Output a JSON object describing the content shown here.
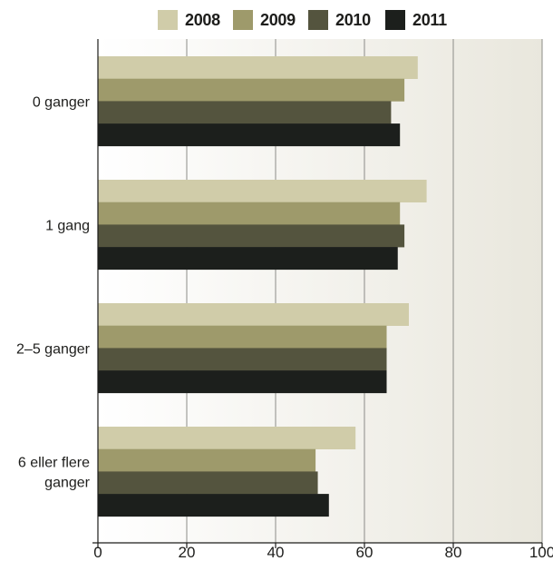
{
  "chart_data": {
    "type": "bar",
    "orientation": "horizontal",
    "categories": [
      "0 ganger",
      "1 gang",
      "2–5 ganger",
      "6 eller flere ganger"
    ],
    "category_lines": [
      [
        "0 ganger"
      ],
      [
        "1 gang"
      ],
      [
        "2–5 ganger"
      ],
      [
        "6 eller flere",
        "ganger"
      ]
    ],
    "series": [
      {
        "name": "2008",
        "color": "#d0cca9",
        "values": [
          72,
          74,
          70,
          58
        ]
      },
      {
        "name": "2009",
        "color": "#9e9a6b",
        "values": [
          69,
          68,
          65,
          49
        ]
      },
      {
        "name": "2010",
        "color": "#54543e",
        "values": [
          66,
          69,
          65,
          49.5
        ]
      },
      {
        "name": "2011",
        "color": "#1c1f1c",
        "values": [
          68,
          67.5,
          65,
          52
        ]
      }
    ],
    "xlim": [
      0,
      100
    ],
    "xticks": [
      0,
      20,
      40,
      60,
      80,
      100
    ],
    "grid": true,
    "legend_position": "top",
    "background_gradient": [
      "#ffffff",
      "#e9e7dd"
    ]
  }
}
